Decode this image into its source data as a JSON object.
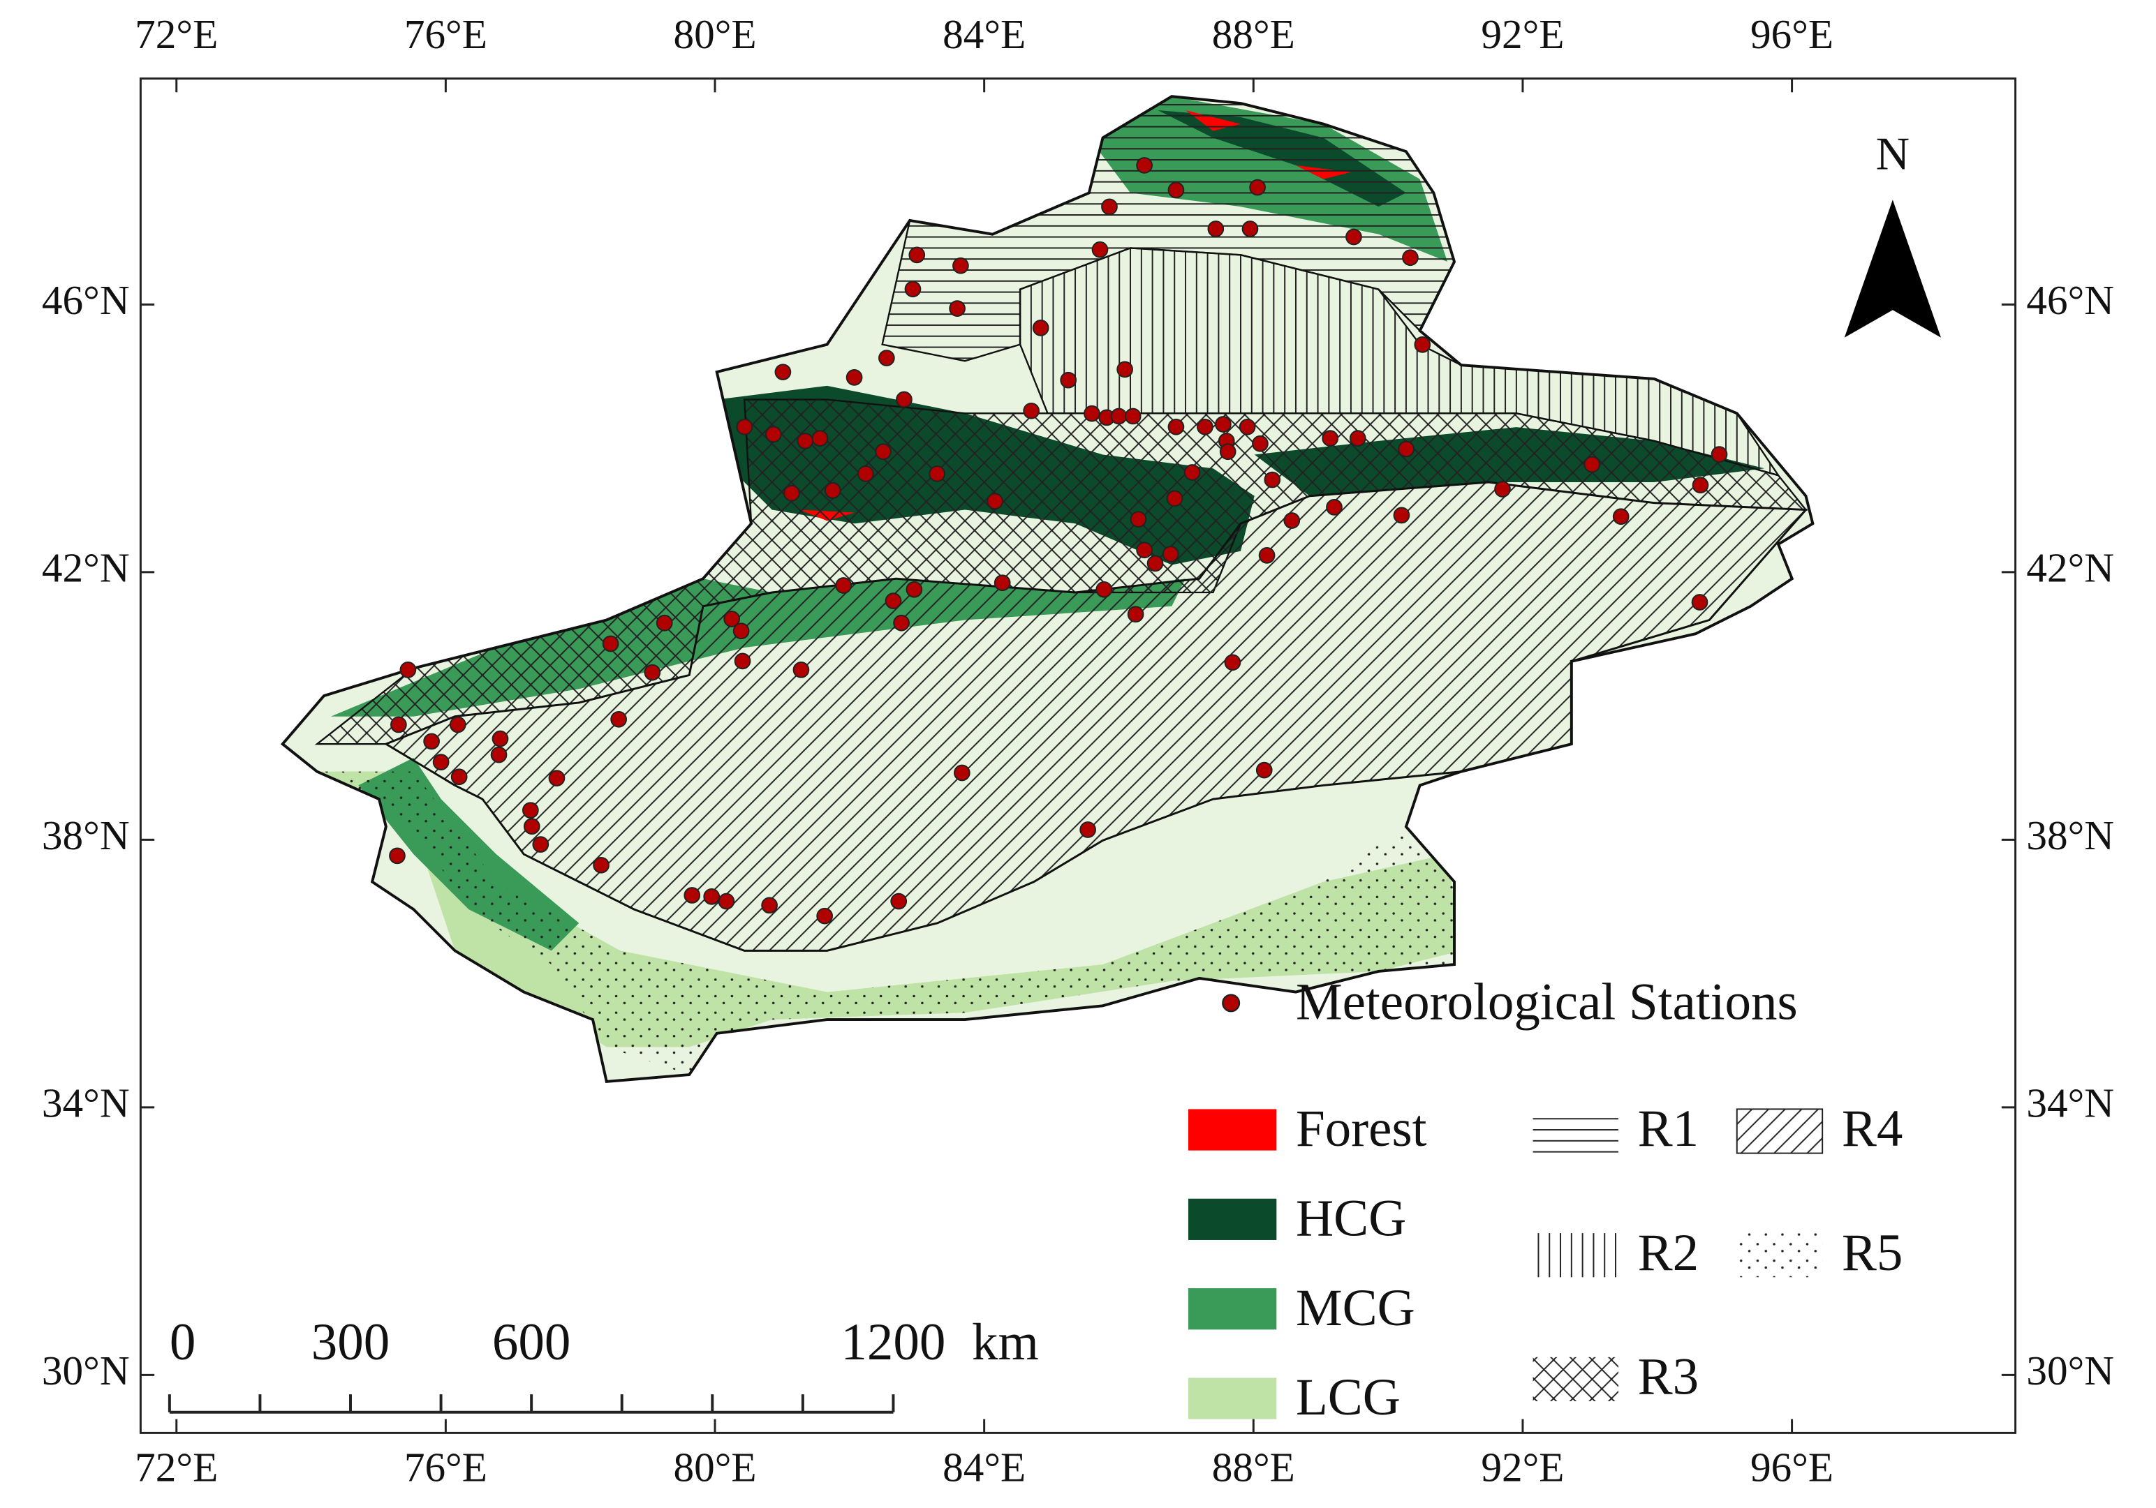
{
  "map": {
    "lon_ticks": [
      {
        "value": 72,
        "label": "72°E"
      },
      {
        "value": 76,
        "label": "76°E"
      },
      {
        "value": 80,
        "label": "80°E"
      },
      {
        "value": 84,
        "label": "84°E"
      },
      {
        "value": 88,
        "label": "88°E"
      },
      {
        "value": 92,
        "label": "92°E"
      },
      {
        "value": 96,
        "label": "96°E"
      }
    ],
    "lat_ticks": [
      {
        "value": 30,
        "label": "30°N"
      },
      {
        "value": 34,
        "label": "34°N"
      },
      {
        "value": 38,
        "label": "38°N"
      },
      {
        "value": 42,
        "label": "42°N"
      },
      {
        "value": 46,
        "label": "46°N"
      }
    ],
    "north": "N",
    "station_label": "Meteorological Stations",
    "station_color": "#b00000",
    "land_cover": [
      {
        "name": "Forest",
        "color": "#ff0000"
      },
      {
        "name": "HCG",
        "color": "#0b4a2a"
      },
      {
        "name": "MCG",
        "color": "#3a9a58"
      },
      {
        "name": "LCG",
        "color": "#bfe3a6"
      }
    ],
    "regions": [
      "R1",
      "R2",
      "R3",
      "R4",
      "R5"
    ],
    "scale_bar": {
      "labels": [
        0,
        300,
        600,
        1200
      ],
      "unit": "km",
      "ticks": [
        0,
        150,
        300,
        450,
        600,
        750,
        900,
        1050,
        1200
      ]
    },
    "stations": [
      [
        86.38,
        48.08
      ],
      [
        85.86,
        47.46
      ],
      [
        86.85,
        47.71
      ],
      [
        88.06,
        47.75
      ],
      [
        87.44,
        47.13
      ],
      [
        87.95,
        47.13
      ],
      [
        89.49,
        47.01
      ],
      [
        90.33,
        46.7
      ],
      [
        85.72,
        46.82
      ],
      [
        83.0,
        46.74
      ],
      [
        83.65,
        46.58
      ],
      [
        82.94,
        46.23
      ],
      [
        83.6,
        45.94
      ],
      [
        84.84,
        45.65
      ],
      [
        90.51,
        45.4
      ],
      [
        82.55,
        45.2
      ],
      [
        81.01,
        44.99
      ],
      [
        82.07,
        44.91
      ],
      [
        86.09,
        45.03
      ],
      [
        85.25,
        44.87
      ],
      [
        82.81,
        44.58
      ],
      [
        80.44,
        44.17
      ],
      [
        80.87,
        44.06
      ],
      [
        81.34,
        43.96
      ],
      [
        81.56,
        44.0
      ],
      [
        84.7,
        44.41
      ],
      [
        85.6,
        44.37
      ],
      [
        85.82,
        44.31
      ],
      [
        86.0,
        44.33
      ],
      [
        86.21,
        44.33
      ],
      [
        86.85,
        44.17
      ],
      [
        87.28,
        44.17
      ],
      [
        87.55,
        44.21
      ],
      [
        87.91,
        44.17
      ],
      [
        87.6,
        43.96
      ],
      [
        87.62,
        43.8
      ],
      [
        88.1,
        43.92
      ],
      [
        89.14,
        44.0
      ],
      [
        89.55,
        44.0
      ],
      [
        90.27,
        43.84
      ],
      [
        81.14,
        43.18
      ],
      [
        81.75,
        43.22
      ],
      [
        82.24,
        43.47
      ],
      [
        82.5,
        43.8
      ],
      [
        83.3,
        43.47
      ],
      [
        84.16,
        43.06
      ],
      [
        87.09,
        43.49
      ],
      [
        86.83,
        43.1
      ],
      [
        88.28,
        43.38
      ],
      [
        88.57,
        42.77
      ],
      [
        89.2,
        42.97
      ],
      [
        90.2,
        42.85
      ],
      [
        91.7,
        43.24
      ],
      [
        93.03,
        43.61
      ],
      [
        93.46,
        42.83
      ],
      [
        94.64,
        43.3
      ],
      [
        94.92,
        43.76
      ],
      [
        94.63,
        41.55
      ],
      [
        86.29,
        42.79
      ],
      [
        86.38,
        42.33
      ],
      [
        86.77,
        42.27
      ],
      [
        86.54,
        42.13
      ],
      [
        88.2,
        42.25
      ],
      [
        85.78,
        41.74
      ],
      [
        86.25,
        41.37
      ],
      [
        84.27,
        41.84
      ],
      [
        81.91,
        41.8
      ],
      [
        82.65,
        41.57
      ],
      [
        82.96,
        41.74
      ],
      [
        82.77,
        41.24
      ],
      [
        80.25,
        41.3
      ],
      [
        80.39,
        41.12
      ],
      [
        79.25,
        41.24
      ],
      [
        78.45,
        40.93
      ],
      [
        80.41,
        40.67
      ],
      [
        81.28,
        40.54
      ],
      [
        79.07,
        40.5
      ],
      [
        87.69,
        40.65
      ],
      [
        75.44,
        40.54
      ],
      [
        75.3,
        39.72
      ],
      [
        76.18,
        39.72
      ],
      [
        75.79,
        39.47
      ],
      [
        75.93,
        39.16
      ],
      [
        76.2,
        38.94
      ],
      [
        76.81,
        39.51
      ],
      [
        76.79,
        39.27
      ],
      [
        77.65,
        38.92
      ],
      [
        78.57,
        39.8
      ],
      [
        77.26,
        38.44
      ],
      [
        77.28,
        38.2
      ],
      [
        77.41,
        37.93
      ],
      [
        75.28,
        37.76
      ],
      [
        78.31,
        37.62
      ],
      [
        79.66,
        37.17
      ],
      [
        79.95,
        37.15
      ],
      [
        80.17,
        37.08
      ],
      [
        80.81,
        37.02
      ],
      [
        81.63,
        36.86
      ],
      [
        82.73,
        37.08
      ],
      [
        83.67,
        39.0
      ],
      [
        85.54,
        38.15
      ],
      [
        88.16,
        39.04
      ]
    ]
  }
}
